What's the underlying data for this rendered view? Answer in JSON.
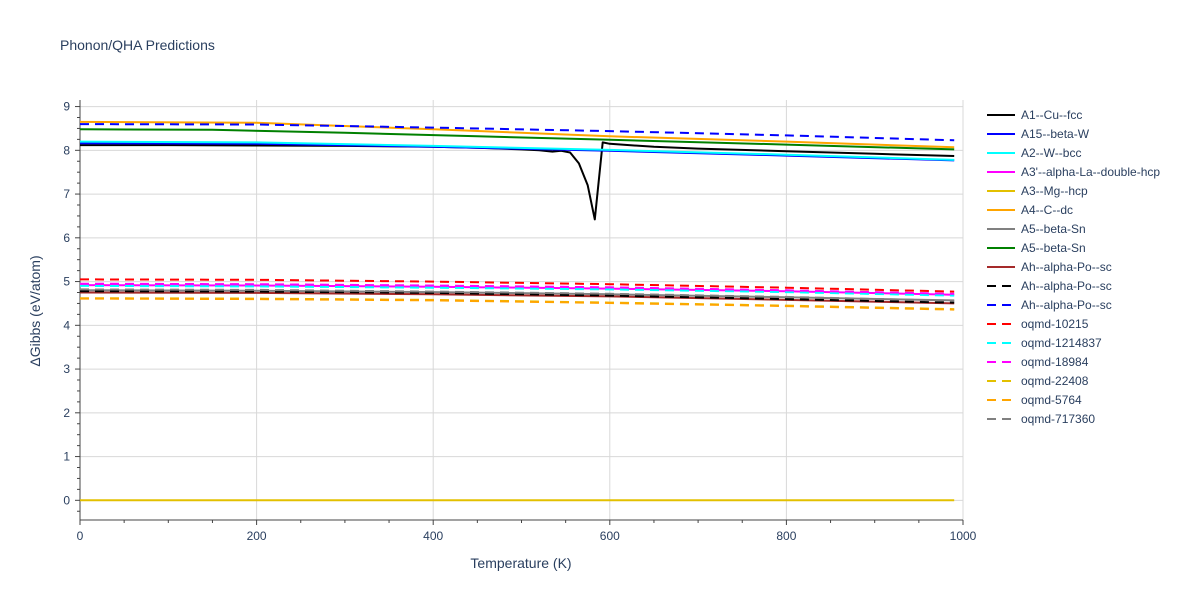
{
  "chart_data": {
    "type": "line",
    "title": "Phonon/QHA Predictions",
    "xlabel": "Temperature (K)",
    "ylabel": "ΔGibbs (eV/atom)",
    "xlim": [
      0,
      1000
    ],
    "ylim": [
      -0.45,
      9.15
    ],
    "xticks": [
      0,
      200,
      400,
      600,
      800,
      1000
    ],
    "yticks": [
      0,
      1,
      2,
      3,
      4,
      5,
      6,
      7,
      8,
      9
    ],
    "grid": true,
    "legend_position": "right",
    "series": [
      {
        "name": "A1--Cu--fcc",
        "color": "#000000",
        "dash": "solid",
        "x": [
          0,
          100,
          200,
          300,
          400,
          450,
          500,
          520,
          535,
          545,
          555,
          565,
          575,
          583,
          592,
          600,
          650,
          700,
          800,
          900,
          990
        ],
        "y": [
          8.12,
          8.12,
          8.11,
          8.1,
          8.08,
          8.06,
          8.02,
          8.0,
          7.97,
          7.99,
          7.95,
          7.7,
          7.2,
          6.42,
          8.18,
          8.15,
          8.08,
          8.04,
          7.98,
          7.92,
          7.87
        ]
      },
      {
        "name": "A15--beta-W",
        "color": "#0000ff",
        "dash": "solid",
        "x": [
          0,
          200,
          400,
          600,
          800,
          990
        ],
        "y": [
          8.16,
          8.15,
          8.08,
          7.99,
          7.88,
          7.77
        ]
      },
      {
        "name": "A2--W--bcc",
        "color": "#00ffff",
        "dash": "solid",
        "x": [
          0,
          200,
          400,
          600,
          800,
          990
        ],
        "y": [
          8.2,
          8.18,
          8.1,
          8.01,
          7.9,
          7.78
        ]
      },
      {
        "name": "A3'--alpha-La--double-hcp",
        "color": "#ff00ff",
        "dash": "solid",
        "x": [
          0,
          200,
          400,
          600,
          800,
          990
        ],
        "y": [
          4.92,
          4.91,
          4.88,
          4.84,
          4.78,
          4.7
        ]
      },
      {
        "name": "A3--Mg--hcp",
        "color": "#e3c000",
        "dash": "solid",
        "x": [
          0,
          990
        ],
        "y": [
          0,
          0
        ]
      },
      {
        "name": "A4--C--dc",
        "color": "#ffa500",
        "dash": "solid",
        "x": [
          0,
          200,
          400,
          600,
          800,
          990
        ],
        "y": [
          8.65,
          8.63,
          8.48,
          8.32,
          8.2,
          8.07
        ]
      },
      {
        "name": "A5--beta-Sn",
        "color": "#808080",
        "dash": "solid",
        "x": [
          0,
          200,
          400,
          600,
          800,
          990
        ],
        "y": [
          4.8,
          4.79,
          4.76,
          4.71,
          4.64,
          4.57
        ]
      },
      {
        "name": "A5--beta-Sn",
        "color": "#008000",
        "dash": "solid",
        "x": [
          0,
          150,
          300,
          450,
          600,
          800,
          990
        ],
        "y": [
          8.48,
          8.47,
          8.4,
          8.32,
          8.24,
          8.13,
          8.02
        ]
      },
      {
        "name": "Ah--alpha-Po--sc",
        "color": "#a52a2a",
        "dash": "solid",
        "x": [
          0,
          200,
          400,
          600,
          800,
          990
        ],
        "y": [
          4.75,
          4.74,
          4.71,
          4.66,
          4.58,
          4.5
        ]
      },
      {
        "name": "Ah--alpha-Po--sc",
        "color": "#000000",
        "dash": "dash",
        "x": [
          0,
          200,
          400,
          600,
          800,
          990
        ],
        "y": [
          4.78,
          4.77,
          4.74,
          4.68,
          4.6,
          4.52
        ]
      },
      {
        "name": "Ah--alpha-Po--sc",
        "color": "#0000ff",
        "dash": "dash",
        "x": [
          0,
          200,
          400,
          600,
          800,
          990
        ],
        "y": [
          8.6,
          8.59,
          8.52,
          8.44,
          8.34,
          8.23
        ]
      },
      {
        "name": "oqmd-10215",
        "color": "#ff0000",
        "dash": "dash",
        "x": [
          0,
          200,
          400,
          600,
          800,
          990
        ],
        "y": [
          5.05,
          5.04,
          5.0,
          4.94,
          4.86,
          4.77
        ]
      },
      {
        "name": "oqmd-1214837",
        "color": "#00ffff",
        "dash": "dash",
        "x": [
          0,
          200,
          400,
          600,
          800,
          990
        ],
        "y": [
          4.9,
          4.89,
          4.86,
          4.82,
          4.76,
          4.68
        ]
      },
      {
        "name": "oqmd-18984",
        "color": "#ff00ff",
        "dash": "dash",
        "x": [
          0,
          200,
          400,
          600,
          800,
          990
        ],
        "y": [
          4.95,
          4.94,
          4.91,
          4.87,
          4.8,
          4.72
        ]
      },
      {
        "name": "oqmd-22408",
        "color": "#e3c000",
        "dash": "dash",
        "x": [
          0,
          200,
          400,
          600,
          800,
          990
        ],
        "y": [
          4.62,
          4.61,
          4.58,
          4.52,
          4.45,
          4.37
        ]
      },
      {
        "name": "oqmd-5764",
        "color": "#ffa500",
        "dash": "dash",
        "x": [
          0,
          200,
          400,
          600,
          800,
          990
        ],
        "y": [
          4.61,
          4.6,
          4.57,
          4.51,
          4.44,
          4.36
        ]
      },
      {
        "name": "oqmd-717360",
        "color": "#808080",
        "dash": "dash",
        "x": [
          0,
          200,
          400,
          600,
          800,
          990
        ],
        "y": [
          4.82,
          4.81,
          4.77,
          4.72,
          4.65,
          4.56
        ]
      }
    ]
  }
}
